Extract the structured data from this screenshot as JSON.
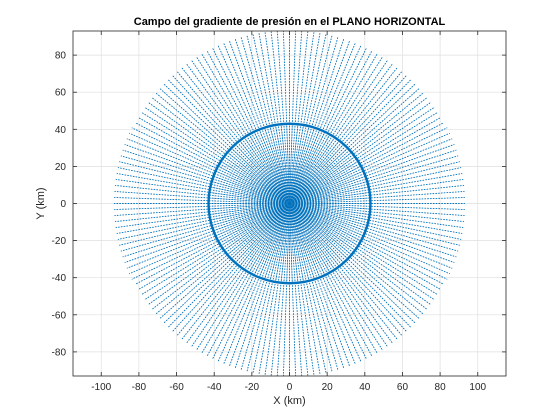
{
  "chart_data": {
    "type": "quiver",
    "title": "Campo del gradiente de presión en el PLANO HORIZONTAL",
    "xlabel": "X (km)",
    "ylabel": "Y (km)",
    "xlim": [
      -115,
      115
    ],
    "ylim": [
      -93,
      93
    ],
    "xticks": [
      -100,
      -80,
      -60,
      -40,
      -20,
      0,
      20,
      40,
      60,
      80,
      100
    ],
    "yticks": [
      -80,
      -60,
      -40,
      -20,
      0,
      20,
      40,
      60,
      80
    ],
    "grid": true,
    "field": {
      "center": [
        0,
        0
      ],
      "outer_radius_km": 93,
      "ring_radius_km": 43,
      "rays": 180,
      "samples_per_ray": 60,
      "direction": "radial"
    },
    "series": [
      {
        "color": "#0072BD"
      }
    ]
  }
}
